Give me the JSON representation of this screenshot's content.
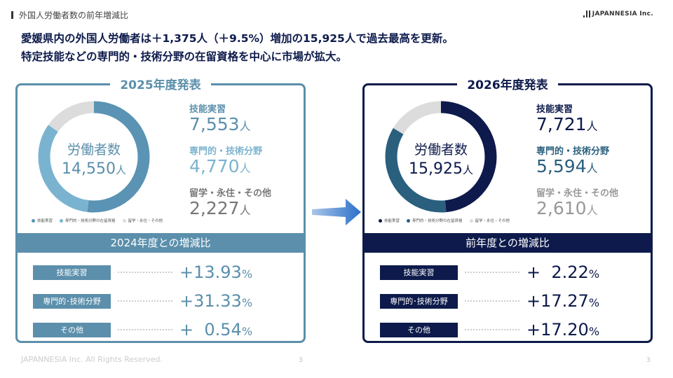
{
  "breadcrumb": "外国人労働者数の前年増減比",
  "logo": "JAPANNESIA Inc.",
  "headline": [
    "愛媛県内の外国人労働者は＋1,375人（＋9.5%）増加の15,925人で過去最高を更新。",
    "特定技能などの専門的・技術分野の在留資格を中心に市場が拡大。"
  ],
  "unit": "人",
  "pct": "%",
  "panels": [
    {
      "title": "2025年度発表",
      "center_label": "労働者数",
      "total": "14,550",
      "legend": [
        "技能実習",
        "専門的・技術分野の在留資格",
        "留学・永住・その他"
      ],
      "colors": [
        "#5a93b3",
        "#7ab3cf",
        "#dcdcdc"
      ],
      "stat_colors": [
        "#5b8fab",
        "#7ab3cf",
        "#777777"
      ],
      "stats": [
        {
          "label": "技能実習",
          "value": "7,553",
          "n": 7553
        },
        {
          "label": "専門的・技術分野",
          "value": "4,770",
          "n": 4770
        },
        {
          "label": "留学・永住・その他",
          "value": "2,227",
          "n": 2227
        }
      ],
      "band": "2024年度との増減比",
      "rows": [
        {
          "label": "技能実習",
          "sign": "+",
          "value": "13.93"
        },
        {
          "label": "専門的･技術分野",
          "sign": "+",
          "value": "31.33"
        },
        {
          "label": "その他",
          "sign": "+",
          "value": "  0.54"
        }
      ]
    },
    {
      "title": "2026年度発表",
      "center_label": "労働者数",
      "total": "15,925",
      "legend": [
        "技能実習",
        "専門的・技術分野の在留資格",
        "留学・永住・その他"
      ],
      "colors": [
        "#0d1a4b",
        "#2a5f7e",
        "#dcdcdc"
      ],
      "stat_colors": [
        "#0d1a4b",
        "#2a5f7e",
        "#999999"
      ],
      "stats": [
        {
          "label": "技能実習",
          "value": "7,721",
          "n": 7721
        },
        {
          "label": "専門的・技術分野",
          "value": "5,594",
          "n": 5594
        },
        {
          "label": "留学・永住・その他",
          "value": "2,610",
          "n": 2610
        }
      ],
      "band": "前年度との増減比",
      "rows": [
        {
          "label": "技能実習",
          "sign": "+",
          "value": "  2.22"
        },
        {
          "label": "専門的･技術分野",
          "sign": "+",
          "value": "17.27"
        },
        {
          "label": "その他",
          "sign": "+",
          "value": "17.20"
        }
      ]
    }
  ],
  "footer": "JAPANNESIA Inc. All Rights Reserved.",
  "page_number": "3"
}
